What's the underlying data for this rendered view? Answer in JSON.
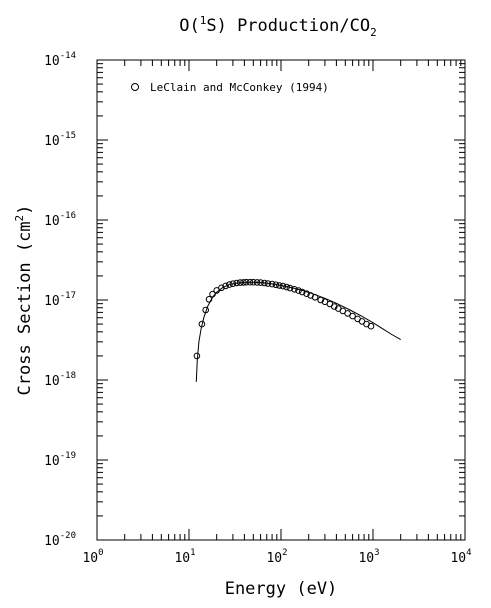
{
  "chart_data": {
    "type": "scatter",
    "title": "O(¹S) Production/CO₂",
    "title_parts": {
      "main": "O(",
      "sup": "1",
      "rest": "S) Production/CO",
      "sub": "2"
    },
    "xlabel": "Energy (eV)",
    "ylabel": "Cross Section (cm²)",
    "ylabel_parts": {
      "main": "Cross Section (cm",
      "sup": "2",
      "end": ")"
    },
    "x_scale": "log",
    "y_scale": "log",
    "xlim": [
      1,
      10000
    ],
    "ylim": [
      1e-20,
      1e-14
    ],
    "x_ticks": [
      {
        "base": "10",
        "exp": "0"
      },
      {
        "base": "10",
        "exp": "1"
      },
      {
        "base": "10",
        "exp": "2"
      },
      {
        "base": "10",
        "exp": "3"
      },
      {
        "base": "10",
        "exp": "4"
      }
    ],
    "y_ticks": [
      {
        "base": "10",
        "exp": "-20"
      },
      {
        "base": "10",
        "exp": "-19"
      },
      {
        "base": "10",
        "exp": "-18"
      },
      {
        "base": "10",
        "exp": "-17"
      },
      {
        "base": "10",
        "exp": "-16"
      },
      {
        "base": "10",
        "exp": "-15"
      },
      {
        "base": "10",
        "exp": "-14"
      }
    ],
    "grid": false,
    "legend_position": "top-left",
    "series": [
      {
        "name": "LeClain and McConkey (1994)",
        "kind": "points",
        "marker": "circle",
        "x": [
          12.2,
          13.8,
          15.2,
          16.5,
          18,
          20,
          22.5,
          25,
          27.5,
          30,
          33,
          36,
          39,
          42,
          46,
          50,
          55,
          60,
          66,
          72,
          80,
          88,
          96,
          105,
          115,
          125,
          140,
          155,
          170,
          190,
          210,
          235,
          270,
          300,
          340,
          380,
          420,
          470,
          530,
          600,
          680,
          760,
          850,
          950
        ],
        "y": [
          2e-18,
          5e-18,
          7.5e-18,
          1.02e-17,
          1.18e-17,
          1.32e-17,
          1.42e-17,
          1.5e-17,
          1.56e-17,
          1.6e-17,
          1.63e-17,
          1.65e-17,
          1.66e-17,
          1.67e-17,
          1.67e-17,
          1.67e-17,
          1.66e-17,
          1.65e-17,
          1.63e-17,
          1.61e-17,
          1.58e-17,
          1.55e-17,
          1.52e-17,
          1.49e-17,
          1.45e-17,
          1.41e-17,
          1.36e-17,
          1.31e-17,
          1.26e-17,
          1.2e-17,
          1.14e-17,
          1.08e-17,
          1e-17,
          9.5e-18,
          8.9e-18,
          8.3e-18,
          7.8e-18,
          7.3e-18,
          6.8e-18,
          6.3e-18,
          5.8e-18,
          5.4e-18,
          5e-18,
          4.7e-18
        ]
      },
      {
        "kind": "line",
        "x": [
          12,
          12.3,
          12.8,
          13.5,
          14.5,
          16,
          18,
          20,
          23,
          27,
          32,
          40,
          50,
          65,
          80,
          100,
          130,
          170,
          220,
          300,
          400,
          550,
          750,
          1000,
          1300,
          1600,
          2000
        ],
        "y": [
          9.5e-19,
          1.8e-18,
          3e-18,
          4.3e-18,
          6e-18,
          8.4e-18,
          1.08e-17,
          1.25e-17,
          1.42e-17,
          1.55e-17,
          1.62e-17,
          1.66e-17,
          1.67e-17,
          1.64e-17,
          1.59e-17,
          1.52e-17,
          1.43e-17,
          1.32e-17,
          1.2e-17,
          1.05e-17,
          9.1e-18,
          7.6e-18,
          6.3e-18,
          5.2e-18,
          4.3e-18,
          3.7e-18,
          3.2e-18
        ]
      }
    ]
  }
}
